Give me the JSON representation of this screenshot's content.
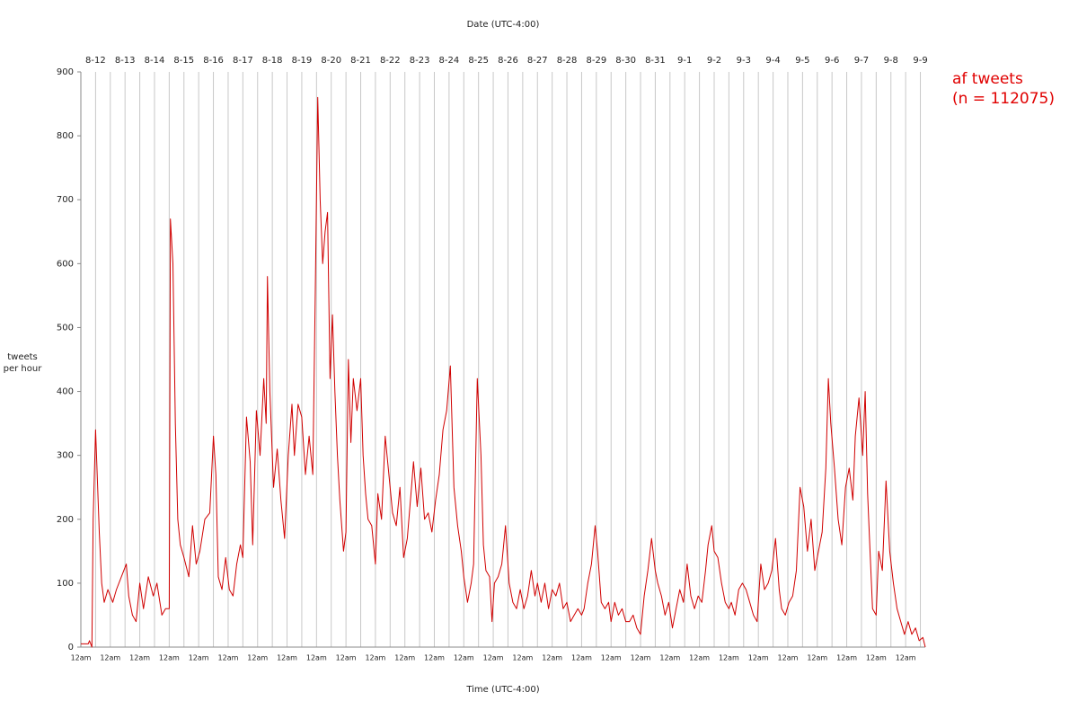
{
  "chart_data": {
    "type": "line",
    "title": "Date (UTC-4:00)",
    "x_label": "Time (UTC-4:00)",
    "y_label": [
      "tweets",
      "per hour"
    ],
    "note": "(n = 112075)",
    "xlim": [
      0,
      688
    ],
    "ylim": [
      0,
      900
    ],
    "yticks": [
      0,
      100,
      200,
      300,
      400,
      500,
      600,
      700,
      800,
      900
    ],
    "xticks": [
      {
        "value": 0,
        "label": "12am"
      },
      {
        "value": 24,
        "label": "12am"
      },
      {
        "value": 48,
        "label": "12am"
      },
      {
        "value": 72,
        "label": "12am"
      },
      {
        "value": 96,
        "label": "12am"
      },
      {
        "value": 120,
        "label": "12am"
      },
      {
        "value": 144,
        "label": "12am"
      },
      {
        "value": 168,
        "label": "12am"
      },
      {
        "value": 192,
        "label": "12am"
      },
      {
        "value": 216,
        "label": "12am"
      },
      {
        "value": 240,
        "label": "12am"
      },
      {
        "value": 264,
        "label": "12am"
      },
      {
        "value": 288,
        "label": "12am"
      },
      {
        "value": 312,
        "label": "12am"
      },
      {
        "value": 336,
        "label": "12am"
      },
      {
        "value": 360,
        "label": "12am"
      },
      {
        "value": 384,
        "label": "12am"
      },
      {
        "value": 408,
        "label": "12am"
      },
      {
        "value": 432,
        "label": "12am"
      },
      {
        "value": 456,
        "label": "12am"
      },
      {
        "value": 480,
        "label": "12am"
      },
      {
        "value": 504,
        "label": "12am"
      },
      {
        "value": 528,
        "label": "12am"
      },
      {
        "value": 552,
        "label": "12am"
      },
      {
        "value": 576,
        "label": "12am"
      },
      {
        "value": 600,
        "label": "12am"
      },
      {
        "value": 624,
        "label": "12am"
      },
      {
        "value": 648,
        "label": "12am"
      },
      {
        "value": 672,
        "label": "12am"
      }
    ],
    "x2ticks": [
      {
        "value": 12,
        "label": "8-12"
      },
      {
        "value": 36,
        "label": "8-13"
      },
      {
        "value": 60,
        "label": "8-14"
      },
      {
        "value": 84,
        "label": "8-15"
      },
      {
        "value": 108,
        "label": "8-16"
      },
      {
        "value": 132,
        "label": "8-17"
      },
      {
        "value": 156,
        "label": "8-18"
      },
      {
        "value": 180,
        "label": "8-19"
      },
      {
        "value": 204,
        "label": "8-20"
      },
      {
        "value": 228,
        "label": "8-21"
      },
      {
        "value": 252,
        "label": "8-22"
      },
      {
        "value": 276,
        "label": "8-23"
      },
      {
        "value": 300,
        "label": "8-24"
      },
      {
        "value": 324,
        "label": "8-25"
      },
      {
        "value": 348,
        "label": "8-26"
      },
      {
        "value": 372,
        "label": "8-27"
      },
      {
        "value": 396,
        "label": "8-28"
      },
      {
        "value": 420,
        "label": "8-29"
      },
      {
        "value": 444,
        "label": "8-30"
      },
      {
        "value": 468,
        "label": "8-31"
      },
      {
        "value": 492,
        "label": "9-1"
      },
      {
        "value": 516,
        "label": "9-2"
      },
      {
        "value": 540,
        "label": "9-3"
      },
      {
        "value": 564,
        "label": "9-4"
      },
      {
        "value": 588,
        "label": "9-5"
      },
      {
        "value": 612,
        "label": "9-6"
      },
      {
        "value": 636,
        "label": "9-7"
      },
      {
        "value": 660,
        "label": "9-8"
      },
      {
        "value": 684,
        "label": "9-9"
      }
    ],
    "grid": true,
    "series": [
      {
        "name": "af tweets",
        "color": "#d00000",
        "x": [
          0,
          6,
          7,
          9,
          10,
          12,
          15,
          17,
          19,
          22,
          26,
          29,
          33,
          37,
          39,
          42,
          45,
          48,
          51,
          55,
          59,
          62,
          66,
          69,
          72,
          73,
          75,
          77,
          79,
          81,
          84,
          88,
          91,
          94,
          97,
          101,
          105,
          108,
          110,
          112,
          115,
          118,
          121,
          124,
          127,
          130,
          132,
          135,
          138,
          140,
          143,
          146,
          149,
          151,
          152,
          154,
          157,
          160,
          163,
          166,
          169,
          172,
          174,
          177,
          180,
          183,
          186,
          189,
          191,
          193,
          195,
          197,
          199,
          201,
          203,
          205,
          207,
          209,
          211,
          214,
          216,
          218,
          220,
          222,
          225,
          228,
          230,
          232,
          234,
          237,
          240,
          242,
          245,
          248,
          251,
          254,
          257,
          260,
          263,
          266,
          269,
          271,
          274,
          277,
          280,
          283,
          286,
          289,
          292,
          295,
          298,
          301,
          304,
          307,
          310,
          312,
          315,
          318,
          320,
          323,
          326,
          328,
          330,
          333,
          335,
          337,
          340,
          343,
          346,
          349,
          352,
          355,
          358,
          361,
          364,
          367,
          370,
          372,
          375,
          378,
          381,
          384,
          387,
          390,
          393,
          396,
          399,
          402,
          405,
          408,
          410,
          413,
          416,
          419,
          421,
          424,
          427,
          430,
          432,
          435,
          438,
          441,
          444,
          447,
          450,
          453,
          456,
          459,
          462,
          465,
          468,
          470,
          473,
          476,
          479,
          482,
          485,
          488,
          491,
          494,
          497,
          500,
          503,
          506,
          509,
          511,
          514,
          516,
          519,
          522,
          525,
          528,
          530,
          533,
          536,
          539,
          542,
          545,
          548,
          551,
          554,
          557,
          560,
          563,
          566,
          569,
          571,
          574,
          577,
          580,
          583,
          586,
          589,
          592,
          595,
          598,
          601,
          604,
          607,
          609,
          611,
          614,
          617,
          620,
          623,
          626,
          629,
          631,
          634,
          637,
          639,
          641,
          643,
          645,
          648,
          650,
          653,
          656,
          659,
          662,
          665,
          668,
          671,
          674,
          677,
          680,
          683,
          686,
          688
        ],
        "values": [
          5,
          5,
          10,
          0,
          200,
          340,
          180,
          100,
          70,
          90,
          70,
          90,
          110,
          130,
          80,
          50,
          40,
          100,
          60,
          110,
          80,
          100,
          50,
          60,
          60,
          670,
          600,
          350,
          200,
          160,
          140,
          110,
          190,
          130,
          150,
          200,
          210,
          330,
          270,
          110,
          90,
          140,
          90,
          80,
          130,
          160,
          140,
          360,
          290,
          160,
          370,
          300,
          420,
          350,
          580,
          400,
          250,
          310,
          230,
          170,
          300,
          380,
          300,
          380,
          360,
          270,
          330,
          270,
          560,
          860,
          700,
          600,
          650,
          680,
          420,
          520,
          400,
          300,
          230,
          150,
          180,
          450,
          320,
          420,
          370,
          420,
          300,
          240,
          200,
          190,
          130,
          240,
          200,
          330,
          270,
          210,
          190,
          250,
          140,
          170,
          240,
          290,
          220,
          280,
          200,
          210,
          180,
          230,
          270,
          340,
          370,
          440,
          250,
          190,
          150,
          110,
          70,
          100,
          130,
          420,
          300,
          160,
          120,
          110,
          40,
          100,
          110,
          130,
          190,
          100,
          70,
          60,
          90,
          60,
          80,
          120,
          80,
          100,
          70,
          100,
          60,
          90,
          80,
          100,
          60,
          70,
          40,
          50,
          60,
          50,
          60,
          100,
          130,
          190,
          150,
          70,
          60,
          70,
          40,
          70,
          50,
          60,
          40,
          40,
          50,
          30,
          20,
          80,
          120,
          170,
          120,
          100,
          80,
          50,
          70,
          30,
          60,
          90,
          70,
          130,
          80,
          60,
          80,
          70,
          120,
          160,
          190,
          150,
          140,
          100,
          70,
          60,
          70,
          50,
          90,
          100,
          90,
          70,
          50,
          40,
          130,
          90,
          100,
          120,
          170,
          90,
          60,
          50,
          70,
          80,
          120,
          250,
          220,
          150,
          200,
          120,
          150,
          180,
          280,
          420,
          350,
          280,
          200,
          160,
          250,
          280,
          230,
          330,
          390,
          300,
          400,
          240,
          150,
          60,
          50,
          150,
          120,
          260,
          150,
          100,
          60,
          40,
          20,
          40,
          20,
          30,
          10,
          15,
          0
        ]
      }
    ]
  }
}
